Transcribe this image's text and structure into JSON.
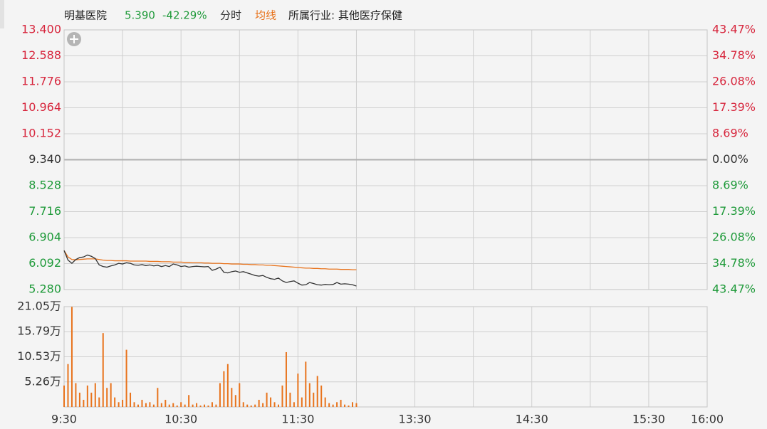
{
  "header": {
    "name": "明基医院",
    "price": "5.390",
    "change": "-42.29%",
    "mode": "分时",
    "avg_label": "均线",
    "industry": "所属行业: 其他医疗保健"
  },
  "chart_data": {
    "type": "line",
    "xlim": [
      0,
      330
    ],
    "xgrid": [
      0,
      30,
      60,
      90,
      120,
      150,
      180,
      210,
      240,
      270,
      300,
      330
    ],
    "xticks": [
      {
        "value": 0,
        "label": "9:30"
      },
      {
        "value": 60,
        "label": "10:30"
      },
      {
        "value": 120,
        "label": "11:30"
      },
      {
        "value": 180,
        "label": "13:30"
      },
      {
        "value": 240,
        "label": "14:30"
      },
      {
        "value": 300,
        "label": "15:30"
      },
      {
        "value": 330,
        "label": "16:00"
      }
    ],
    "ylim": [
      5.28,
      13.4
    ],
    "yticks": [
      {
        "value": 13.4,
        "label": "13.400"
      },
      {
        "value": 12.588,
        "label": "12.588"
      },
      11.776,
      10.964,
      10.152,
      {
        "value": 9.34,
        "label": "9.340"
      },
      8.528,
      7.716,
      6.904,
      6.092,
      {
        "value": 5.28,
        "label": "5.280"
      }
    ],
    "y2lim": [
      -43.47,
      43.47
    ],
    "y2ticks": [
      {
        "value": 43.47,
        "label": "43.47%"
      },
      {
        "value": 34.78,
        "label": "34.78%"
      },
      {
        "value": 26.08,
        "label": "26.08%"
      },
      {
        "value": 17.39,
        "label": "17.39%"
      },
      {
        "value": 8.69,
        "label": "8.69%"
      },
      {
        "value": 0,
        "label": "0.00%"
      },
      {
        "value": -8.69,
        "label": "8.69%"
      },
      {
        "value": -17.39,
        "label": "17.39%"
      },
      {
        "value": -26.08,
        "label": "26.08%"
      },
      {
        "value": -34.78,
        "label": "34.78%"
      },
      {
        "value": -43.47,
        "label": "43.47%"
      }
    ],
    "x": [
      0,
      2,
      4,
      6,
      8,
      10,
      12,
      14,
      16,
      18,
      20,
      22,
      24,
      26,
      28,
      30,
      32,
      34,
      36,
      38,
      40,
      42,
      44,
      46,
      48,
      50,
      52,
      54,
      56,
      58,
      60,
      62,
      64,
      66,
      68,
      70,
      72,
      74,
      76,
      78,
      80,
      82,
      84,
      86,
      88,
      90,
      92,
      94,
      96,
      98,
      100,
      102,
      104,
      106,
      108,
      110,
      112,
      114,
      116,
      118,
      120,
      122,
      124,
      126,
      128,
      130,
      132,
      134,
      136,
      138,
      140,
      142,
      144,
      146,
      148,
      150
    ],
    "series": [
      {
        "name": "price",
        "color": "#333333",
        "values": [
          6.5,
          6.2,
          6.1,
          6.22,
          6.28,
          6.3,
          6.36,
          6.32,
          6.25,
          6.05,
          6.0,
          5.98,
          6.02,
          6.05,
          6.1,
          6.08,
          6.12,
          6.1,
          6.05,
          6.04,
          6.06,
          6.03,
          6.05,
          6.02,
          6.04,
          6.0,
          6.03,
          6.0,
          6.08,
          6.05,
          6.0,
          6.02,
          5.98,
          6.0,
          6.01,
          6.0,
          5.99,
          6.0,
          5.88,
          5.92,
          5.98,
          5.82,
          5.8,
          5.84,
          5.86,
          5.82,
          5.84,
          5.8,
          5.76,
          5.72,
          5.7,
          5.72,
          5.66,
          5.62,
          5.6,
          5.64,
          5.55,
          5.5,
          5.53,
          5.55,
          5.48,
          5.42,
          5.43,
          5.5,
          5.47,
          5.43,
          5.42,
          5.44,
          5.43,
          5.44,
          5.5,
          5.45,
          5.46,
          5.45,
          5.43,
          5.39
        ]
      },
      {
        "name": "均线",
        "color": "#e8731c",
        "values": [
          6.5,
          6.3,
          6.22,
          6.21,
          6.22,
          6.23,
          6.24,
          6.24,
          6.24,
          6.22,
          6.2,
          6.19,
          6.19,
          6.18,
          6.18,
          6.18,
          6.18,
          6.17,
          6.17,
          6.17,
          6.17,
          6.17,
          6.16,
          6.16,
          6.16,
          6.15,
          6.15,
          6.15,
          6.14,
          6.14,
          6.14,
          6.13,
          6.13,
          6.12,
          6.12,
          6.12,
          6.11,
          6.11,
          6.1,
          6.1,
          6.1,
          6.09,
          6.09,
          6.08,
          6.08,
          6.08,
          6.07,
          6.07,
          6.06,
          6.06,
          6.05,
          6.05,
          6.04,
          6.04,
          6.03,
          6.02,
          6.01,
          6.0,
          5.99,
          5.98,
          5.97,
          5.96,
          5.95,
          5.95,
          5.94,
          5.94,
          5.93,
          5.93,
          5.92,
          5.92,
          5.92,
          5.91,
          5.91,
          5.91,
          5.9,
          5.9
        ]
      }
    ],
    "volume": {
      "color": "#e8731c",
      "ylim": [
        0,
        21.05
      ],
      "yticks": [
        {
          "value": 21.05,
          "label": "21.05万"
        },
        {
          "value": 15.79,
          "label": "15.79万"
        },
        {
          "value": 10.53,
          "label": "10.53万"
        },
        {
          "value": 5.26,
          "label": "5.26万"
        }
      ],
      "values": [
        4.5,
        9,
        21,
        5,
        3,
        1.5,
        4.5,
        3,
        5,
        2,
        15.5,
        4,
        5,
        2,
        1,
        1.5,
        12,
        3,
        1,
        0.5,
        1.5,
        0.8,
        1,
        0.5,
        4,
        0.8,
        1.5,
        0.5,
        0.8,
        0.3,
        1,
        0.5,
        2.5,
        0.5,
        0.8,
        0.3,
        0.5,
        0.3,
        1,
        0.5,
        5,
        7.5,
        9,
        4,
        2.5,
        5,
        1,
        0.5,
        0.3,
        0.5,
        1.5,
        0.8,
        3,
        2,
        1,
        0.5,
        4.5,
        11.5,
        3,
        1,
        7,
        2,
        9.5,
        5,
        3,
        6.5,
        4.5,
        2,
        0.8,
        0.5,
        1,
        1.5,
        0.5,
        0.3,
        1,
        0.8
      ]
    },
    "grid": true
  }
}
